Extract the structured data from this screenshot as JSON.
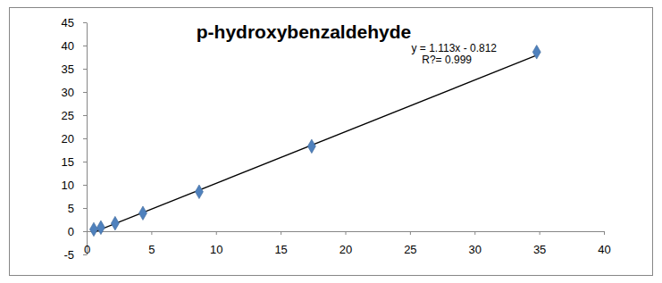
{
  "chart_data": {
    "type": "scatter",
    "title": "p-hydroxybenzaldehyde",
    "annotations": [
      "y = 1.113x - 0.812",
      "R?= 0.999"
    ],
    "series": [
      {
        "type": "scatter",
        "color": "#4f81bd",
        "marker": "diamond",
        "x": [
          0.55,
          1.1,
          2.2,
          4.35,
          8.7,
          17.4,
          34.8
        ],
        "values": [
          0.4,
          0.8,
          1.7,
          3.9,
          8.5,
          18.3,
          38.6
        ]
      },
      {
        "type": "line",
        "color": "#000000",
        "line_style": "solid",
        "x": [
          0.55,
          34.8
        ],
        "values": [
          -0.2,
          37.9
        ]
      }
    ],
    "xlim": [
      0,
      40
    ],
    "xticks": [
      0,
      5,
      10,
      15,
      20,
      25,
      30,
      35,
      40
    ],
    "ylim": [
      -5,
      45
    ],
    "yticks": [
      -5,
      0,
      5,
      10,
      15,
      20,
      25,
      30,
      35,
      40,
      45
    ],
    "grid": false
  }
}
